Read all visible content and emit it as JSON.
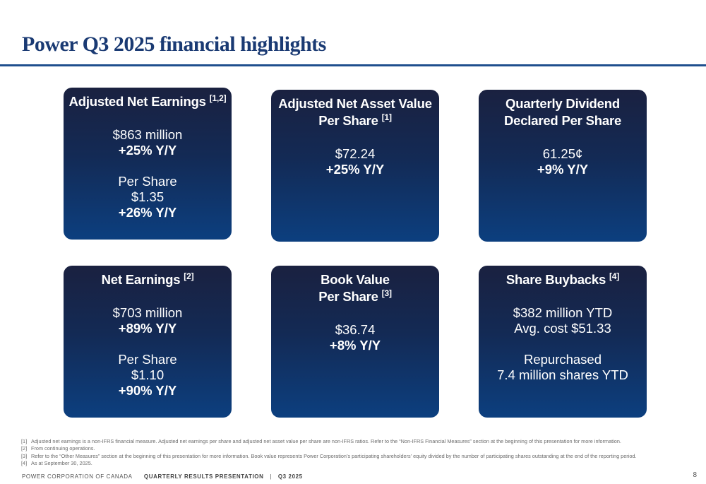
{
  "title": "Power Q3 2025 financial highlights",
  "cards": [
    {
      "head_lines": [
        "Adjusted Net Earnings"
      ],
      "head_sup": "[1,2]",
      "body": [
        "$863 million",
        {
          "b": "+25% Y/Y"
        },
        null,
        "Per Share",
        "$1.35",
        {
          "b": "+26% Y/Y"
        }
      ]
    },
    {
      "head_lines": [
        "Adjusted Net Asset Value",
        "Per Share"
      ],
      "head_sup": "[1]",
      "body": [
        "$72.24",
        {
          "b": "+25% Y/Y"
        }
      ]
    },
    {
      "head_lines": [
        "Quarterly Dividend",
        "Declared Per Share"
      ],
      "head_sup": "",
      "body": [
        "61.25¢",
        {
          "b": "+9% Y/Y"
        }
      ]
    },
    {
      "head_lines": [
        "Net Earnings"
      ],
      "head_sup": "[2]",
      "body": [
        "$703 million",
        {
          "b": "+89% Y/Y"
        },
        null,
        "Per Share",
        "$1.10",
        {
          "b": "+90% Y/Y"
        }
      ]
    },
    {
      "head_lines": [
        "Book Value",
        "Per Share"
      ],
      "head_sup": "[3]",
      "body": [
        "$36.74",
        {
          "b": "+8% Y/Y"
        }
      ]
    },
    {
      "head_lines": [
        "Share Buybacks"
      ],
      "head_sup": "[4]",
      "body": [
        "$382 million YTD",
        "Avg. cost $51.33",
        null,
        "Repurchased",
        "7.4 million shares YTD"
      ]
    }
  ],
  "footnotes": [
    {
      "num": "[1]",
      "text": "Adjusted net earnings is a non-IFRS financial measure. Adjusted net earnings per share and adjusted net asset value per share are non-IFRS ratios. Refer to the “Non-IFRS Financial Measures” section at the beginning of this presentation for more information."
    },
    {
      "num": "[2]",
      "text": "From continuing operations."
    },
    {
      "num": "[3]",
      "text": "Refer to the “Other Measures” section at the beginning of this presentation for more information. Book value represents Power Corporation’s participating shareholders’ equity divided by the number of participating shares outstanding at the end of the reporting period."
    },
    {
      "num": "[4]",
      "text": "As at September 30, 2025."
    }
  ],
  "footer": {
    "company": "POWER CORPORATION OF CANADA",
    "presentation": "QUARTERLY RESULTS PRESENTATION",
    "separator": "|",
    "quarter": "Q3 2025",
    "page": "8"
  }
}
